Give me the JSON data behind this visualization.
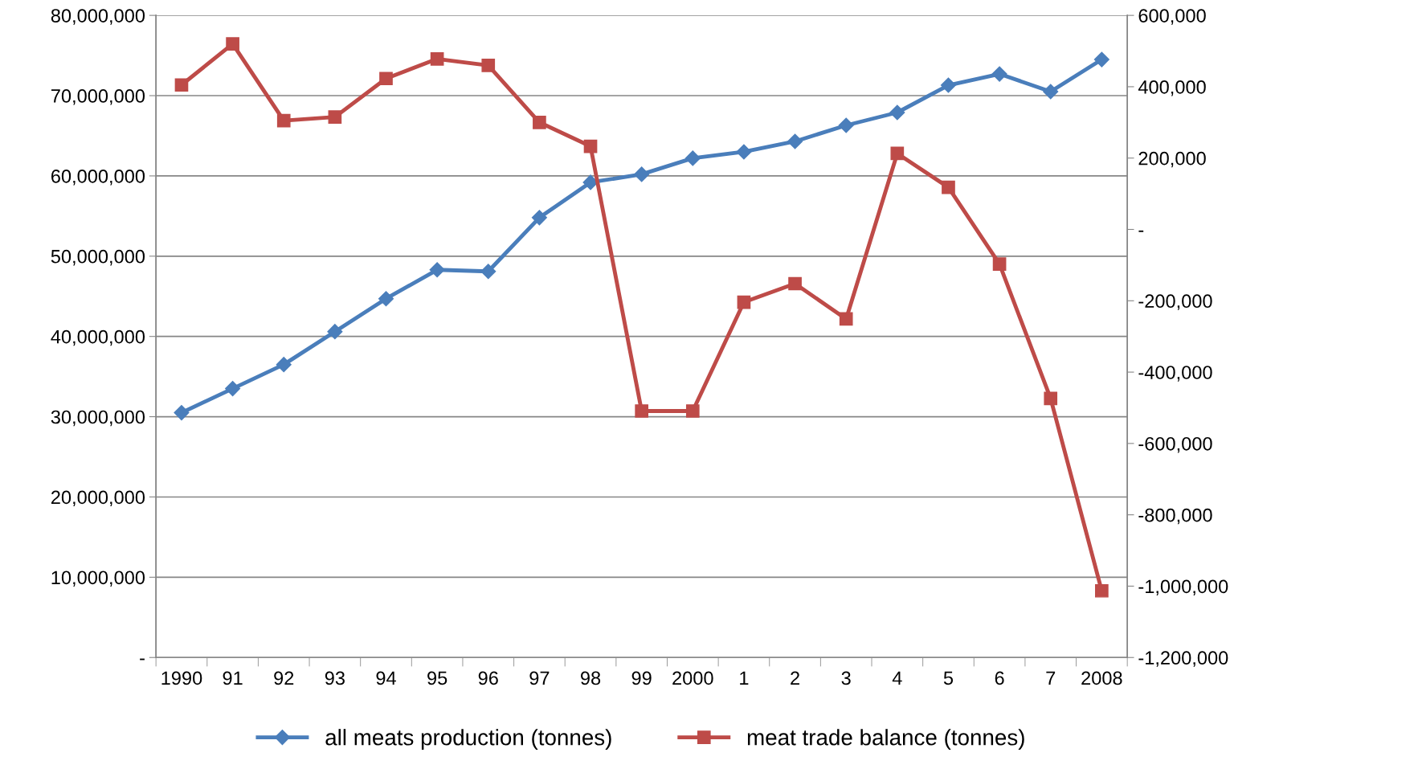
{
  "chart_data": {
    "type": "line",
    "categories": [
      "1990",
      "91",
      "92",
      "93",
      "94",
      "95",
      "96",
      "97",
      "98",
      "99",
      "2000",
      "1",
      "2",
      "3",
      "4",
      "5",
      "6",
      "7",
      "2008"
    ],
    "series": [
      {
        "name": "all meats production (tonnes)",
        "color": "#4a7ebb",
        "marker": "diamond",
        "values": [
          30500000,
          33500000,
          36500000,
          40600000,
          44700000,
          48300000,
          48100000,
          54800000,
          59200000,
          60200000,
          62200000,
          63000000,
          64300000,
          66300000,
          67900000,
          71300000,
          72700000,
          70500000,
          74500000
        ]
      },
      {
        "name": "meat trade balance (tonnes)",
        "color": "#be4b48",
        "marker": "square",
        "axis": "y2",
        "values": [
          405000,
          520000,
          305000,
          315000,
          423000,
          478000,
          460000,
          300000,
          233000,
          -509000,
          -509000,
          -204000,
          -152000,
          -251000,
          213000,
          118000,
          -97000,
          -474000,
          -1013000
        ]
      }
    ],
    "ylim": [
      0,
      80000000
    ],
    "yticks": [
      {
        "value": 0,
        "label": "-"
      },
      {
        "value": 10000000,
        "label": "10,000,000"
      },
      {
        "value": 20000000,
        "label": "20,000,000"
      },
      {
        "value": 30000000,
        "label": "30,000,000"
      },
      {
        "value": 40000000,
        "label": "40,000,000"
      },
      {
        "value": 50000000,
        "label": "50,000,000"
      },
      {
        "value": 60000000,
        "label": "60,000,000"
      },
      {
        "value": 70000000,
        "label": "70,000,000"
      },
      {
        "value": 80000000,
        "label": "80,000,000"
      }
    ],
    "y2lim": [
      -1200000,
      600000
    ],
    "y2ticks": [
      {
        "value": -1200000,
        "label": "-1,200,000"
      },
      {
        "value": -1000000,
        "label": "-1,000,000"
      },
      {
        "value": -800000,
        "label": "-800,000"
      },
      {
        "value": -600000,
        "label": "-600,000"
      },
      {
        "value": -400000,
        "label": "-400,000"
      },
      {
        "value": -200000,
        "label": "-200,000"
      },
      {
        "value": 0,
        "label": "-"
      },
      {
        "value": 200000,
        "label": "200,000"
      },
      {
        "value": 400000,
        "label": "400,000"
      },
      {
        "value": 600000,
        "label": "600,000"
      }
    ],
    "grid": "y",
    "legend": "bottom",
    "line_style": "solid"
  }
}
